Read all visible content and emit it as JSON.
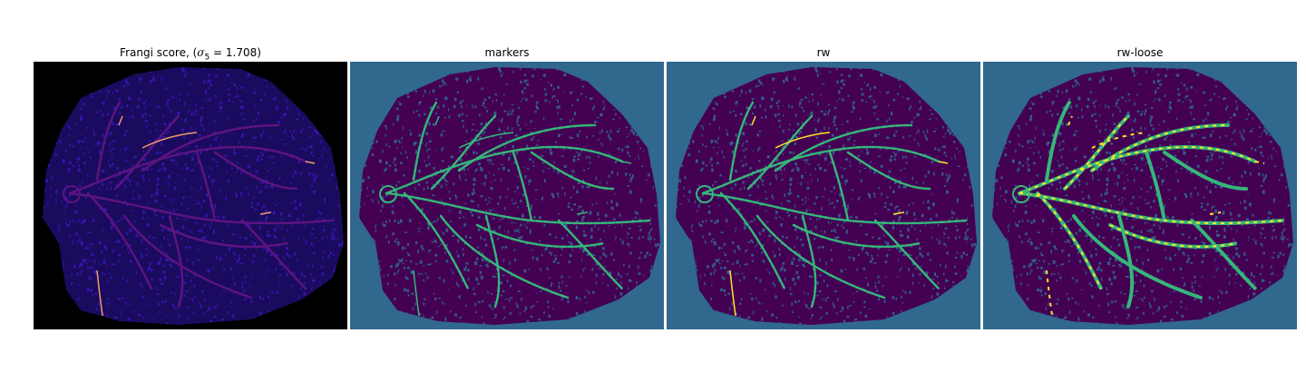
{
  "figure": {
    "panels": [
      {
        "title_prefix": "Frangi score, (",
        "title_math": "σ",
        "title_sub": "5",
        "title_suffix": " = 1.708)",
        "background": "#000000",
        "cell_fill": "#1a0b5e",
        "speckle": "#3a18b8",
        "vessel_stroke": "#5c1480",
        "highlight_stroke": "#f39b6a"
      },
      {
        "title": "markers",
        "background": "#31688e",
        "cell_fill": "#440154",
        "speckle": "#31688e",
        "vessel_stroke": "#35b779",
        "highlight_stroke": "#35b779"
      },
      {
        "title": "rw",
        "background": "#31688e",
        "cell_fill": "#440154",
        "speckle": "#31688e",
        "vessel_stroke": "#35b779",
        "highlight_stroke": "#fde725"
      },
      {
        "title": "rw-loose",
        "background": "#31688e",
        "cell_fill": "#440154",
        "speckle": "#31688e",
        "vessel_stroke": "#35b779",
        "highlight_stroke": "#fde725"
      }
    ]
  }
}
